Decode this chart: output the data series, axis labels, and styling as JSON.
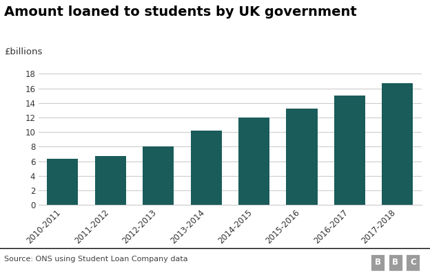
{
  "title": "Amount loaned to students by UK government",
  "ylabel": "£billions",
  "categories": [
    "2010-2011",
    "2011-2012",
    "2012-2013",
    "2013-2014",
    "2014-2015",
    "2015-2016",
    "2016-2017",
    "2017-2018"
  ],
  "values": [
    6.3,
    6.7,
    8.0,
    10.2,
    12.0,
    13.2,
    15.0,
    16.7
  ],
  "bar_color": "#1a5c5a",
  "ylim": [
    0,
    19
  ],
  "yticks": [
    0,
    2,
    4,
    6,
    8,
    10,
    12,
    14,
    16,
    18
  ],
  "grid_color": "#cccccc",
  "background_color": "#ffffff",
  "source_text": "Source: ONS using Student Loan Company data",
  "title_fontsize": 14,
  "ylabel_fontsize": 9.5,
  "tick_fontsize": 8.5,
  "source_fontsize": 8,
  "bar_width": 0.65,
  "footer_line_color": "#000000",
  "bbc_bg_color": "#9b9b9b",
  "footer_text_color": "#404040"
}
